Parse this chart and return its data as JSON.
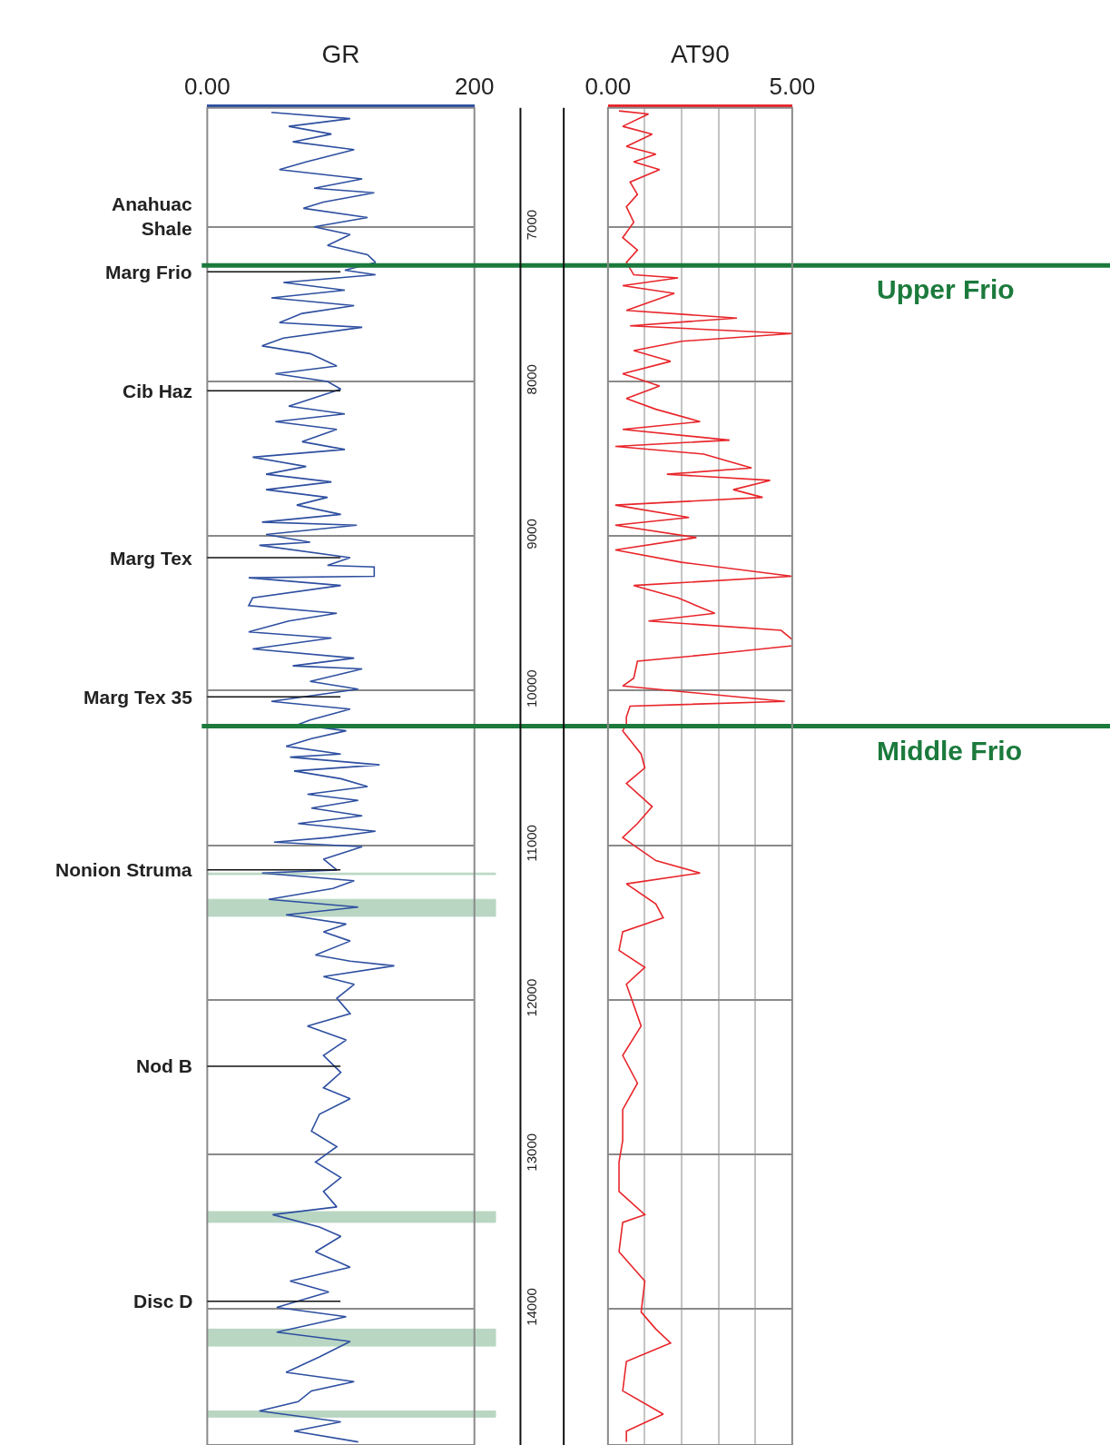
{
  "chart_data": [
    {
      "type": "line",
      "orientation": "horizontal",
      "xlabel": "GR",
      "xlim": [
        0,
        200
      ],
      "xticks": [
        {
          "value": 0,
          "label": "0.00"
        },
        200
      ],
      "ylim": [
        14880,
        6230
      ],
      "yticks": [
        7000,
        8000,
        9000,
        10000,
        11000,
        12000,
        13000,
        14000
      ],
      "grid": "y",
      "series": [
        {
          "color": "#2e4fa0",
          "x": [
            6260,
            6300,
            6350,
            6400,
            6450,
            6500,
            6580,
            6630,
            6690,
            6750,
            6780,
            6840,
            6880,
            6940,
            7000,
            7050,
            7120,
            7180,
            7230,
            7280,
            7310,
            7360,
            7410,
            7460,
            7510,
            7560,
            7620,
            7650,
            7720,
            7770,
            7820,
            7900,
            7950,
            8000,
            8050,
            8160,
            8210,
            8260,
            8310,
            8390,
            8440,
            8490,
            8550,
            8600,
            8650,
            8700,
            8750,
            8800,
            8860,
            8910,
            8930,
            8990,
            9040,
            9060,
            9140,
            9190,
            9200,
            9260,
            9270,
            9320,
            9400,
            9450,
            9500,
            9550,
            9620,
            9660,
            9730,
            9790,
            9840,
            9860,
            9940,
            9990,
            10070,
            10120,
            10190,
            10220,
            10260,
            10310,
            10360,
            10410,
            10430,
            10480,
            10520,
            10570,
            10620,
            10670,
            10710,
            10760,
            10810,
            10860,
            10910,
            10950,
            10980,
            11010,
            11090,
            11160,
            11180,
            11230,
            11280,
            11350,
            11400,
            11450,
            11510,
            11560,
            11620,
            11710,
            11750,
            11780,
            11850,
            11900,
            11990,
            12090,
            12170,
            12260,
            12360,
            12470,
            12570,
            12640,
            12740,
            12850,
            12950,
            13050,
            13150,
            13240,
            13340,
            13390,
            13470,
            13530,
            13630,
            13730,
            13820,
            13890,
            13990,
            14050,
            14150,
            14210,
            14310,
            14410,
            14470,
            14530,
            14600,
            14660,
            14730,
            14790,
            14860
          ],
          "values": [
            48,
            107,
            61,
            93,
            64,
            110,
            74,
            54,
            116,
            80,
            125,
            87,
            72,
            120,
            80,
            107,
            90,
            120,
            126,
            103,
            126,
            57,
            103,
            48,
            110,
            71,
            54,
            116,
            57,
            41,
            77,
            97,
            51,
            90,
            100,
            61,
            103,
            51,
            97,
            71,
            103,
            34,
            74,
            44,
            93,
            44,
            90,
            67,
            100,
            41,
            112,
            44,
            77,
            39,
            107,
            90,
            125,
            125,
            31,
            100,
            34,
            31,
            97,
            61,
            31,
            93,
            34,
            110,
            64,
            116,
            77,
            113,
            48,
            107,
            77,
            68,
            104,
            78,
            59,
            100,
            62,
            129,
            65,
            100,
            120,
            75,
            113,
            78,
            116,
            68,
            126,
            91,
            50,
            116,
            87,
            97,
            41,
            110,
            94,
            46,
            113,
            59,
            104,
            87,
            107,
            81,
            107,
            140,
            87,
            110,
            97,
            107,
            75,
            104,
            87,
            100,
            87,
            107,
            84,
            78,
            97,
            81,
            100,
            87,
            97,
            49,
            84,
            100,
            81,
            107,
            62,
            91,
            52,
            104,
            52,
            107,
            84,
            59,
            110,
            78,
            68,
            39,
            100,
            65,
            113
          ]
        }
      ],
      "ref_lines": [
        {
          "axis": "y",
          "value": 7250,
          "label": "Upper Frio",
          "color": "#1b7a3c"
        },
        {
          "axis": "y",
          "value": 10230,
          "label": "Middle Frio",
          "color": "#1b7a3c"
        },
        {
          "axis": "y",
          "value": 7290,
          "label": "Marg Frio"
        },
        {
          "axis": "y",
          "value": 8060,
          "label": "Cib Haz"
        },
        {
          "axis": "y",
          "value": 9140,
          "label": "Marg Tex"
        },
        {
          "axis": "y",
          "value": 10040,
          "label": "Marg Tex 35"
        },
        {
          "axis": "y",
          "value": 11160,
          "label": "Nonion Struma"
        },
        {
          "axis": "y",
          "value": 12430,
          "label": "Nod B"
        },
        {
          "axis": "y",
          "value": 13950,
          "label": "Disc D"
        }
      ],
      "bands": [
        {
          "axis": "y",
          "from": 11180,
          "to": 11190,
          "color": "#1b7a3c"
        },
        {
          "axis": "y",
          "from": 11350,
          "to": 11460,
          "color": "#1b7a3c"
        },
        {
          "axis": "y",
          "from": 13370,
          "to": 13440,
          "color": "#1b7a3c"
        },
        {
          "axis": "y",
          "from": 14130,
          "to": 14240,
          "color": "#1b7a3c"
        },
        {
          "axis": "y",
          "from": 14660,
          "to": 14700,
          "color": "#1b7a3c"
        }
      ],
      "annotations": [
        "Anahuac\nShale"
      ]
    },
    {
      "type": "line",
      "orientation": "horizontal",
      "xlabel": "AT90",
      "xlim": [
        0,
        5
      ],
      "xticks": [
        {
          "value": 0,
          "label": "0.00"
        },
        {
          "value": 1,
          "label": null
        },
        {
          "value": 2,
          "label": null
        },
        {
          "value": 3,
          "label": null
        },
        {
          "value": 4,
          "label": null
        },
        {
          "value": 5,
          "label": "5.00"
        }
      ],
      "ylim": [
        14880,
        6230
      ],
      "yticks": [
        7000,
        8000,
        9000,
        10000,
        11000,
        12000,
        13000,
        14000
      ],
      "grid": true,
      "tick_labels": "x",
      "series": [
        {
          "color": "#e8262b",
          "x": [
            6250,
            6270,
            6350,
            6400,
            6480,
            6530,
            6580,
            6630,
            6710,
            6790,
            6870,
            6970,
            7070,
            7150,
            7230,
            7310,
            7330,
            7380,
            7430,
            7540,
            7590,
            7640,
            7690,
            7740,
            7800,
            7870,
            7950,
            8030,
            8110,
            8180,
            8260,
            8310,
            8380,
            8420,
            8470,
            8560,
            8600,
            8640,
            8700,
            8750,
            8800,
            8880,
            8930,
            9010,
            9090,
            9170,
            9260,
            9320,
            9400,
            9500,
            9550,
            9610,
            9670,
            9710,
            9760,
            9810,
            9920,
            9970,
            10070,
            10100,
            10170,
            10220,
            10260,
            10410,
            10500,
            10600,
            10750,
            10860,
            10950,
            11100,
            11180,
            11250,
            11380,
            11470,
            11560,
            11680,
            11790,
            11900,
            12170,
            12360,
            12540,
            12710,
            12910,
            13050,
            13240,
            13390,
            13440,
            13630,
            13820,
            14020,
            14130,
            14220,
            14340,
            14530,
            14680,
            14790,
            14860
          ],
          "values": [
            0.3,
            1.1,
            0.4,
            1.2,
            0.5,
            1.3,
            0.7,
            1.4,
            0.6,
            0.8,
            0.5,
            0.7,
            0.4,
            0.8,
            0.5,
            0.7,
            1.9,
            0.4,
            1.8,
            0.5,
            3.5,
            0.6,
            5.0,
            2.0,
            0.7,
            1.7,
            0.4,
            1.4,
            0.5,
            1.3,
            2.5,
            0.4,
            3.3,
            0.2,
            2.6,
            3.9,
            1.6,
            4.4,
            3.4,
            4.2,
            0.2,
            2.2,
            0.2,
            2.4,
            0.2,
            2.0,
            5.0,
            0.7,
            1.9,
            2.9,
            1.1,
            4.7,
            5.0,
            5.0,
            3.0,
            0.8,
            0.7,
            0.4,
            4.8,
            0.6,
            0.5,
            0.5,
            0.4,
            0.9,
            1.0,
            0.5,
            1.2,
            0.8,
            0.4,
            1.3,
            2.5,
            0.5,
            1.3,
            1.5,
            0.4,
            0.3,
            1.0,
            0.5,
            0.9,
            0.4,
            0.8,
            0.4,
            0.4,
            0.3,
            0.3,
            1.0,
            0.4,
            0.3,
            1.0,
            0.9,
            1.3,
            1.7,
            0.5,
            0.4,
            1.5,
            0.5,
            0.5
          ]
        }
      ]
    }
  ]
}
